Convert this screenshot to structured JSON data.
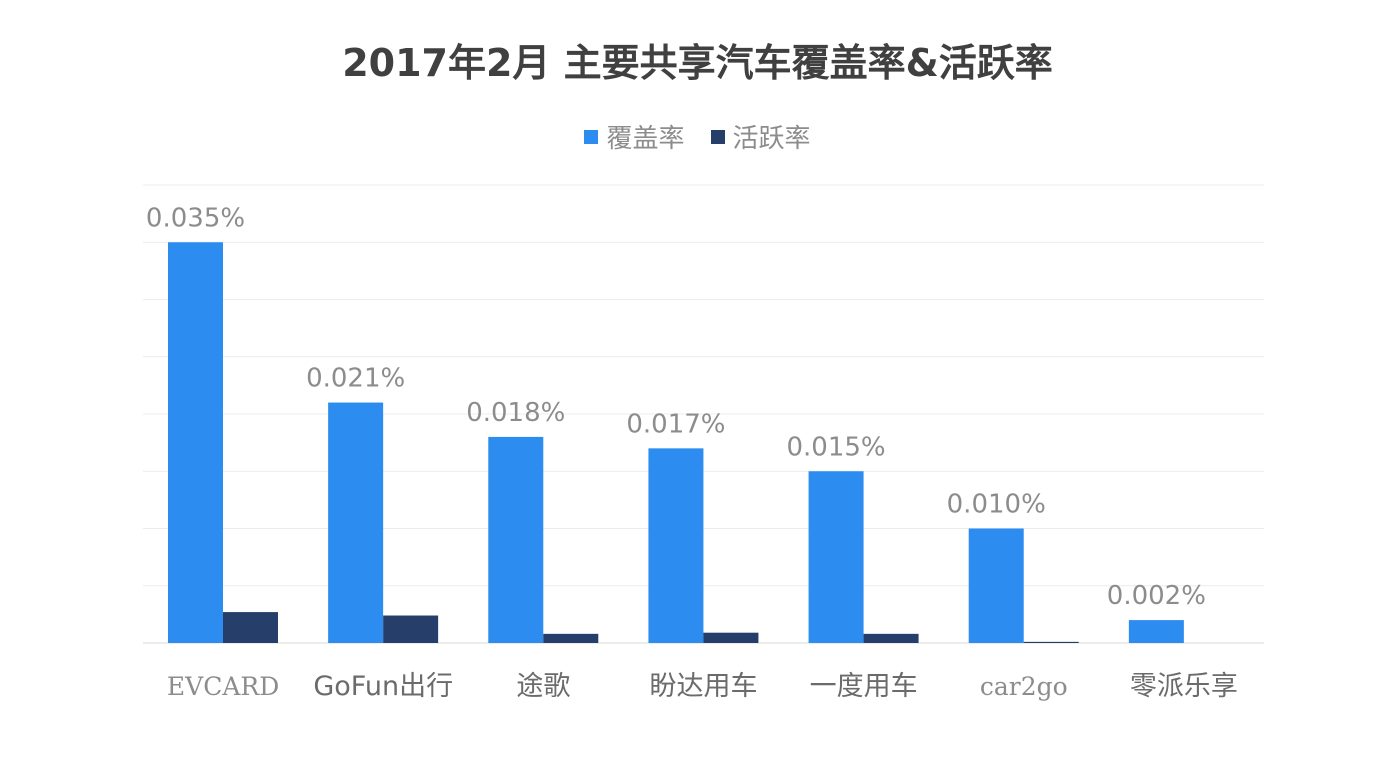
{
  "title": "2017年2月 主要共享汽车覆盖率&活跃率",
  "chart_data": {
    "type": "bar",
    "title": "2017年2月 主要共享汽车覆盖率&活跃率",
    "categories": [
      "EVCARD",
      "GoFun出行",
      "途歌",
      "盼达用车",
      "一度用车",
      "car2go",
      "零派乐享"
    ],
    "series": [
      {
        "name": "覆盖率",
        "color": "#2d8cf0",
        "values": [
          0.035,
          0.021,
          0.018,
          0.017,
          0.015,
          0.01,
          0.002
        ],
        "labels": [
          "0.035%",
          "0.021%",
          "0.018%",
          "0.017%",
          "0.015%",
          "0.010%",
          "0.002%"
        ]
      },
      {
        "name": "活跃率",
        "color": "#263f6a",
        "values": [
          0.0027,
          0.0024,
          0.0008,
          0.0009,
          0.0008,
          0.0001,
          0.0
        ]
      }
    ],
    "xlabel": "",
    "ylabel": "",
    "ylim": [
      0,
      0.04
    ],
    "yticks_shown": false,
    "grid": true,
    "legend_position": "top-center"
  }
}
